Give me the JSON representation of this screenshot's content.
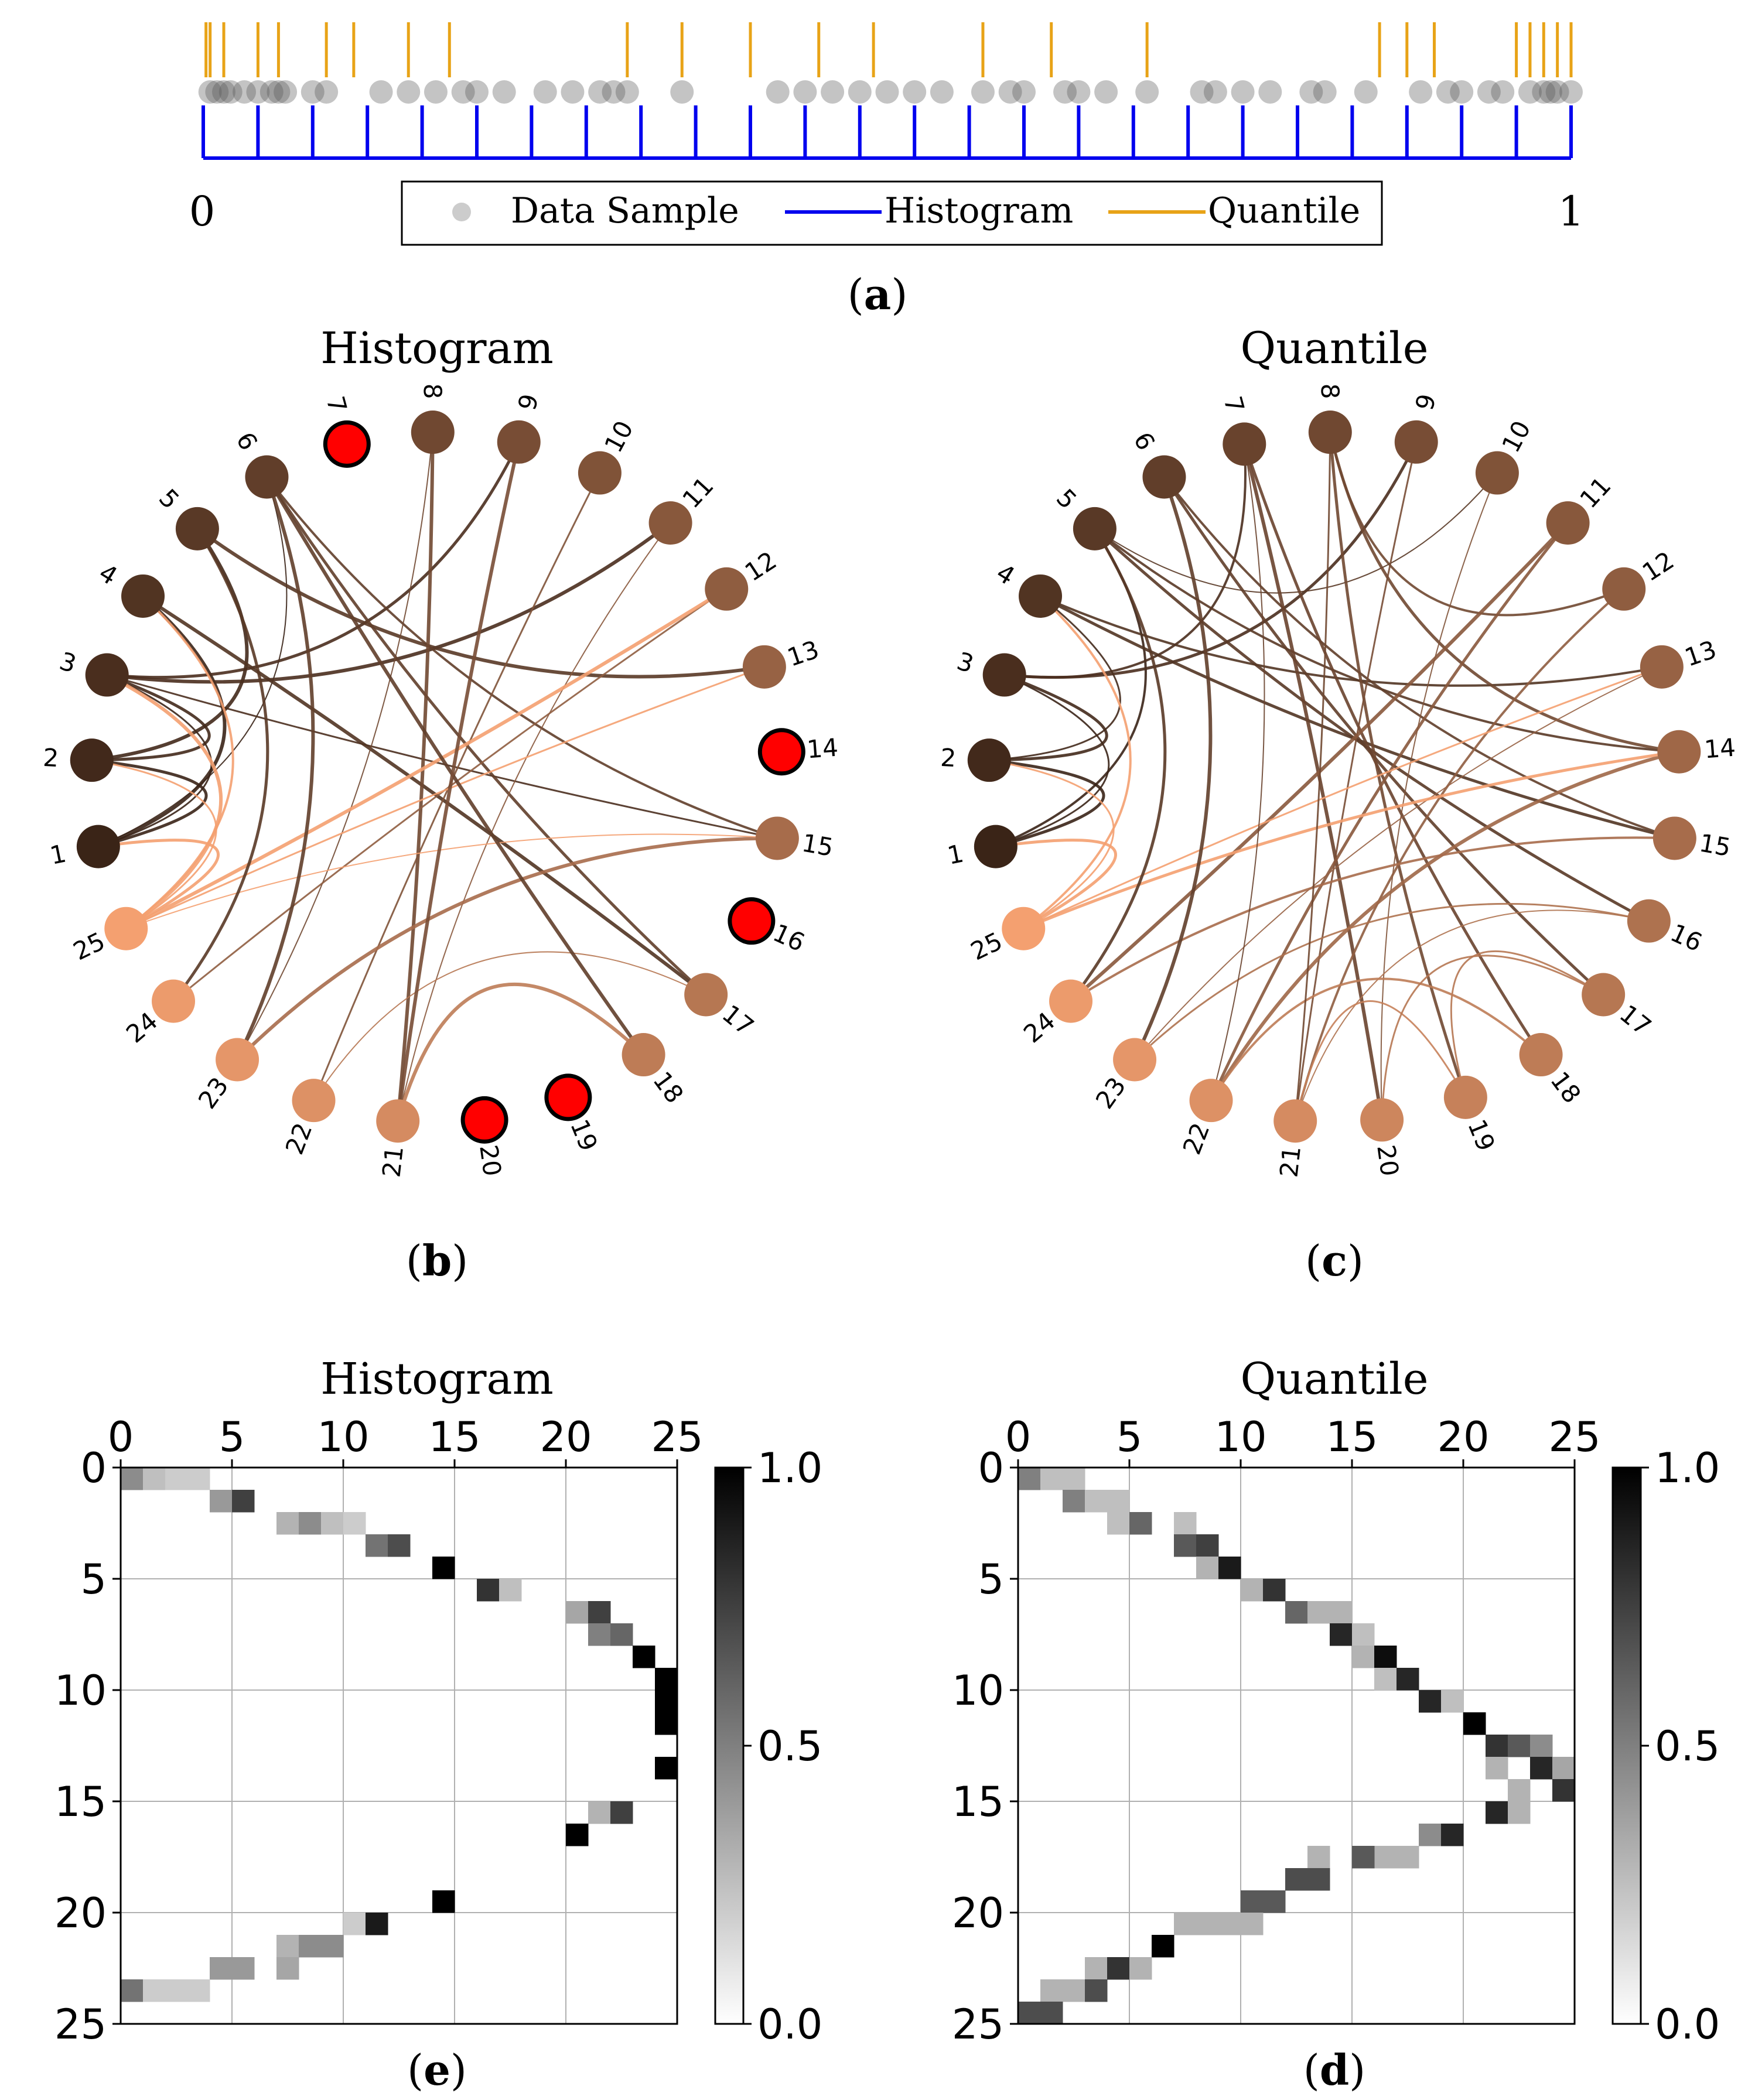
{
  "panel_a": {
    "axis_left_label": "0",
    "axis_right_label": "1",
    "legend": {
      "data_sample": "Data Sample",
      "histogram": "Histogram",
      "quantile": "Quantile"
    },
    "caption_letter": "a"
  },
  "panel_b": {
    "title": "Histogram",
    "caption_letter": "b"
  },
  "panel_c": {
    "title": "Quantile",
    "caption_letter": "c"
  },
  "panel_e": {
    "title": "Histogram",
    "caption_letter": "e"
  },
  "panel_d": {
    "title": "Quantile",
    "caption_letter": "d"
  },
  "colors": {
    "histogram": "#0000ee",
    "quantile": "#e8a317",
    "sample": "#555555",
    "isolated_node": "#ff0000",
    "node_dark": "#3a2417",
    "node_light": "#f4a070"
  },
  "chart_data": [
    {
      "id": "a",
      "type": "scatter",
      "title": "",
      "xlim": [
        0,
        1
      ],
      "x_tick_labels": [
        "0",
        "1"
      ],
      "data_samples": [
        0.005,
        0.01,
        0.015,
        0.02,
        0.03,
        0.04,
        0.05,
        0.055,
        0.06,
        0.08,
        0.09,
        0.13,
        0.15,
        0.17,
        0.19,
        0.2,
        0.22,
        0.25,
        0.27,
        0.29,
        0.31,
        0.3,
        0.35,
        0.42,
        0.44,
        0.46,
        0.48,
        0.5,
        0.52,
        0.54,
        0.57,
        0.59,
        0.6,
        0.63,
        0.64,
        0.66,
        0.69,
        0.73,
        0.74,
        0.76,
        0.78,
        0.81,
        0.82,
        0.85,
        0.89,
        0.91,
        0.92,
        0.94,
        0.95,
        0.97,
        0.98,
        0.985,
        0.99,
        1.0
      ],
      "histogram_edges": [
        0,
        0.04,
        0.08,
        0.12,
        0.16,
        0.2,
        0.24,
        0.28,
        0.32,
        0.36,
        0.4,
        0.44,
        0.48,
        0.52,
        0.56,
        0.6,
        0.64,
        0.68,
        0.72,
        0.76,
        0.8,
        0.84,
        0.88,
        0.92,
        0.96,
        1.0
      ],
      "quantile_edges": [
        0.002,
        0.005,
        0.015,
        0.04,
        0.055,
        0.09,
        0.11,
        0.15,
        0.18,
        0.31,
        0.35,
        0.4,
        0.45,
        0.49,
        0.57,
        0.62,
        0.69,
        0.86,
        0.88,
        0.9,
        0.96,
        0.97,
        0.98,
        0.99,
        1.0
      ]
    },
    {
      "id": "b",
      "type": "chord",
      "title": "Histogram",
      "nodes": [
        "1",
        "2",
        "3",
        "4",
        "5",
        "6",
        "7",
        "8",
        "9",
        "10",
        "11",
        "12",
        "13",
        "14",
        "15",
        "16",
        "17",
        "18",
        "19",
        "20",
        "21",
        "22",
        "23",
        "24",
        "25"
      ],
      "isolated_nodes": [
        7,
        14,
        16,
        19,
        20
      ],
      "edges": [
        [
          1,
          2
        ],
        [
          1,
          3
        ],
        [
          1,
          4
        ],
        [
          1,
          6
        ],
        [
          2,
          3
        ],
        [
          2,
          5
        ],
        [
          3,
          9
        ],
        [
          3,
          11
        ],
        [
          3,
          15
        ],
        [
          4,
          17
        ],
        [
          5,
          13
        ],
        [
          6,
          15
        ],
        [
          6,
          17
        ],
        [
          8,
          21
        ],
        [
          8,
          23
        ],
        [
          10,
          22
        ],
        [
          11,
          21
        ],
        [
          12,
          24
        ],
        [
          12,
          25
        ],
        [
          13,
          25
        ],
        [
          15,
          23
        ],
        [
          15,
          25
        ],
        [
          17,
          22
        ],
        [
          18,
          21
        ],
        [
          18,
          6
        ],
        [
          25,
          1
        ],
        [
          25,
          2
        ],
        [
          25,
          3
        ],
        [
          25,
          4
        ],
        [
          24,
          5
        ],
        [
          23,
          6
        ],
        [
          21,
          9
        ]
      ]
    },
    {
      "id": "c",
      "type": "chord",
      "title": "Quantile",
      "nodes": [
        "1",
        "2",
        "3",
        "4",
        "5",
        "6",
        "7",
        "8",
        "9",
        "10",
        "11",
        "12",
        "13",
        "14",
        "15",
        "16",
        "17",
        "18",
        "19",
        "20",
        "21",
        "22",
        "23",
        "24",
        "25"
      ],
      "isolated_nodes": [],
      "edges": [
        [
          1,
          2
        ],
        [
          1,
          3
        ],
        [
          1,
          5
        ],
        [
          2,
          3
        ],
        [
          2,
          4
        ],
        [
          3,
          7
        ],
        [
          3,
          9
        ],
        [
          4,
          15
        ],
        [
          4,
          13
        ],
        [
          5,
          10
        ],
        [
          5,
          14
        ],
        [
          5,
          16
        ],
        [
          6,
          15
        ],
        [
          6,
          17
        ],
        [
          7,
          18
        ],
        [
          7,
          20
        ],
        [
          8,
          12
        ],
        [
          8,
          19
        ],
        [
          8,
          14
        ],
        [
          9,
          21
        ],
        [
          10,
          20
        ],
        [
          11,
          22
        ],
        [
          11,
          24
        ],
        [
          12,
          21
        ],
        [
          13,
          23
        ],
        [
          13,
          25
        ],
        [
          14,
          22
        ],
        [
          14,
          25
        ],
        [
          15,
          24
        ],
        [
          16,
          21
        ],
        [
          16,
          23
        ],
        [
          17,
          19
        ],
        [
          18,
          22
        ],
        [
          19,
          21
        ],
        [
          20,
          17
        ],
        [
          25,
          1
        ],
        [
          25,
          2
        ],
        [
          25,
          4
        ],
        [
          24,
          5
        ],
        [
          23,
          6
        ],
        [
          22,
          7
        ],
        [
          21,
          8
        ]
      ]
    },
    {
      "id": "e",
      "type": "heatmap",
      "title": "Histogram",
      "xlim": [
        0,
        25
      ],
      "ylim": [
        25,
        0
      ],
      "x_ticks": [
        "0",
        "5",
        "10",
        "15",
        "20",
        "25"
      ],
      "y_ticks": [
        "0",
        "5",
        "10",
        "15",
        "20",
        "25"
      ],
      "colorbar": {
        "min": 0,
        "max": 1,
        "ticks": [
          "0.0",
          "0.5",
          "1.0"
        ]
      },
      "cells": [
        [
          0,
          0,
          0.45
        ],
        [
          1,
          0,
          0.25
        ],
        [
          2,
          0,
          0.2
        ],
        [
          3,
          0,
          0.2
        ],
        [
          4,
          1,
          0.4
        ],
        [
          5,
          1,
          0.75
        ],
        [
          7,
          2,
          0.3
        ],
        [
          8,
          2,
          0.45
        ],
        [
          9,
          2,
          0.25
        ],
        [
          10,
          2,
          0.2
        ],
        [
          11,
          3,
          0.55
        ],
        [
          12,
          3,
          0.7
        ],
        [
          14,
          4,
          1.0
        ],
        [
          16,
          5,
          0.8
        ],
        [
          17,
          5,
          0.25
        ],
        [
          20,
          6,
          0.35
        ],
        [
          21,
          6,
          0.75
        ],
        [
          21,
          7,
          0.5
        ],
        [
          22,
          7,
          0.6
        ],
        [
          23,
          8,
          1.0
        ],
        [
          24,
          9,
          1.0
        ],
        [
          24,
          10,
          1.0
        ],
        [
          24,
          11,
          1.0
        ],
        [
          24,
          13,
          1.0
        ],
        [
          21,
          15,
          0.3
        ],
        [
          22,
          15,
          0.75
        ],
        [
          20,
          16,
          1.0
        ],
        [
          14,
          19,
          1.0
        ],
        [
          10,
          20,
          0.2
        ],
        [
          11,
          20,
          0.9
        ],
        [
          7,
          21,
          0.3
        ],
        [
          8,
          21,
          0.45
        ],
        [
          9,
          21,
          0.45
        ],
        [
          7,
          22,
          0.35
        ],
        [
          4,
          22,
          0.4
        ],
        [
          5,
          22,
          0.4
        ],
        [
          0,
          23,
          0.55
        ],
        [
          1,
          23,
          0.2
        ],
        [
          2,
          23,
          0.2
        ],
        [
          3,
          23,
          0.2
        ]
      ]
    },
    {
      "id": "d",
      "type": "heatmap",
      "title": "Quantile",
      "xlim": [
        0,
        25
      ],
      "ylim": [
        25,
        0
      ],
      "x_ticks": [
        "0",
        "5",
        "10",
        "15",
        "20",
        "25"
      ],
      "y_ticks": [
        "0",
        "5",
        "10",
        "15",
        "20",
        "25"
      ],
      "colorbar": {
        "min": 0,
        "max": 1,
        "ticks": [
          "0.0",
          "0.5",
          "1.0"
        ]
      },
      "cells": [
        [
          0,
          0,
          0.5
        ],
        [
          1,
          0,
          0.25
        ],
        [
          2,
          0,
          0.25
        ],
        [
          2,
          1,
          0.5
        ],
        [
          3,
          1,
          0.25
        ],
        [
          4,
          1,
          0.25
        ],
        [
          4,
          2,
          0.25
        ],
        [
          5,
          2,
          0.6
        ],
        [
          7,
          2,
          0.25
        ],
        [
          7,
          3,
          0.65
        ],
        [
          8,
          3,
          0.75
        ],
        [
          8,
          4,
          0.3
        ],
        [
          9,
          4,
          0.9
        ],
        [
          10,
          5,
          0.3
        ],
        [
          11,
          5,
          0.8
        ],
        [
          12,
          6,
          0.6
        ],
        [
          13,
          6,
          0.3
        ],
        [
          14,
          6,
          0.3
        ],
        [
          14,
          7,
          0.85
        ],
        [
          15,
          7,
          0.25
        ],
        [
          15,
          8,
          0.3
        ],
        [
          16,
          8,
          0.95
        ],
        [
          16,
          9,
          0.25
        ],
        [
          17,
          9,
          0.85
        ],
        [
          18,
          10,
          0.85
        ],
        [
          19,
          10,
          0.25
        ],
        [
          20,
          11,
          1.0
        ],
        [
          21,
          12,
          0.8
        ],
        [
          22,
          12,
          0.65
        ],
        [
          23,
          12,
          0.45
        ],
        [
          21,
          13,
          0.3
        ],
        [
          23,
          13,
          0.85
        ],
        [
          24,
          13,
          0.35
        ],
        [
          22,
          14,
          0.3
        ],
        [
          24,
          14,
          0.8
        ],
        [
          21,
          15,
          0.85
        ],
        [
          22,
          15,
          0.3
        ],
        [
          18,
          16,
          0.45
        ],
        [
          19,
          16,
          0.85
        ],
        [
          17,
          17,
          0.3
        ],
        [
          16,
          17,
          0.3
        ],
        [
          15,
          17,
          0.65
        ],
        [
          13,
          17,
          0.3
        ],
        [
          12,
          18,
          0.7
        ],
        [
          13,
          18,
          0.7
        ],
        [
          10,
          19,
          0.65
        ],
        [
          11,
          19,
          0.65
        ],
        [
          7,
          20,
          0.3
        ],
        [
          8,
          20,
          0.3
        ],
        [
          9,
          20,
          0.3
        ],
        [
          10,
          20,
          0.3
        ],
        [
          6,
          21,
          1.0
        ],
        [
          3,
          22,
          0.3
        ],
        [
          4,
          22,
          0.8
        ],
        [
          5,
          22,
          0.3
        ],
        [
          1,
          23,
          0.3
        ],
        [
          2,
          23,
          0.3
        ],
        [
          3,
          23,
          0.7
        ],
        [
          0,
          24,
          0.7
        ],
        [
          1,
          24,
          0.7
        ]
      ]
    }
  ]
}
